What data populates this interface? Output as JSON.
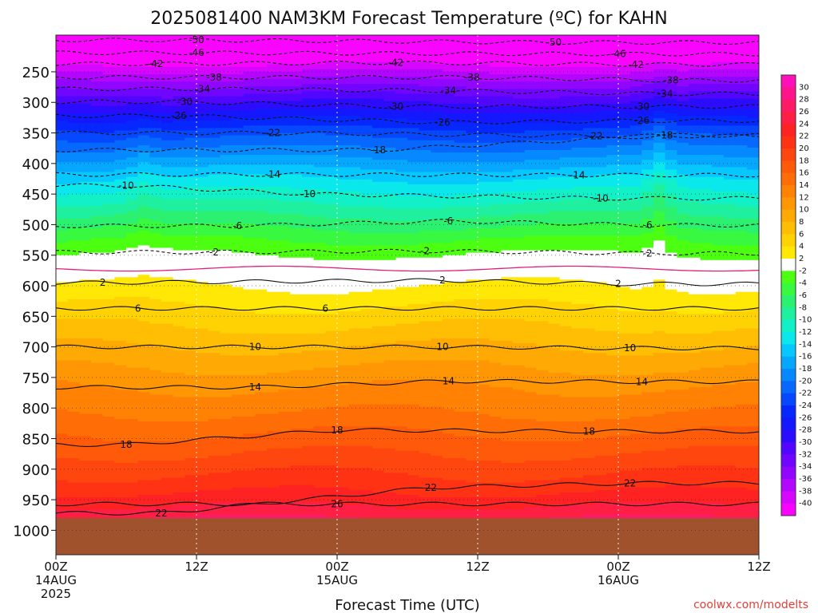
{
  "chart_data": {
    "type": "heatmap",
    "title": "2025081400 NAM3KM Forecast Temperature (ºC) for KAHN",
    "xlabel": "Forecast Time (UTC)",
    "ylabel": "",
    "x_range": [
      "2025-08-14 00Z",
      "2025-08-16 12Z"
    ],
    "x_ticks": [
      {
        "hour": 0,
        "label": "00Z",
        "sub": "14AUG",
        "sub2": "2025"
      },
      {
        "hour": 12,
        "label": "12Z",
        "sub": "",
        "sub2": ""
      },
      {
        "hour": 24,
        "label": "00Z",
        "sub": "15AUG",
        "sub2": ""
      },
      {
        "hour": 36,
        "label": "12Z",
        "sub": "",
        "sub2": ""
      },
      {
        "hour": 48,
        "label": "00Z",
        "sub": "16AUG",
        "sub2": ""
      },
      {
        "hour": 60,
        "label": "12Z",
        "sub": "",
        "sub2": ""
      }
    ],
    "y_axis": {
      "quantity": "pressure (hPa)",
      "direction": "decreasing upward",
      "range": [
        1040,
        190
      ],
      "ticks": [
        250,
        300,
        350,
        400,
        450,
        500,
        550,
        600,
        650,
        700,
        750,
        800,
        850,
        900,
        950,
        1000
      ]
    },
    "grid": true,
    "surface_band_hPa": [
      980,
      1040
    ],
    "colorbar": {
      "placement": "right",
      "labels": [
        "30",
        "28",
        "26",
        "24",
        "22",
        "20",
        "18",
        "16",
        "14",
        "12",
        "10",
        "8",
        "6",
        "4",
        "2",
        "-2",
        "-4",
        "-6",
        "-8",
        "-10",
        "-12",
        "-14",
        "-16",
        "-18",
        "-20",
        "-22",
        "-24",
        "-26",
        "-28",
        "-30",
        "-32",
        "-34",
        "-36",
        "-38",
        "-40"
      ],
      "colors": [
        "#ff10b8",
        "#ff148c",
        "#ff1a66",
        "#ff1e44",
        "#ff2222",
        "#ff3214",
        "#ff460e",
        "#ff5a0a",
        "#ff6e06",
        "#ff8204",
        "#ff9604",
        "#ffaa04",
        "#ffbe04",
        "#ffd204",
        "#ffe806",
        "#ffffff",
        "#4cff10",
        "#38f840",
        "#2cf070",
        "#1ef0a0",
        "#12f0c8",
        "#0ae8ec",
        "#06c8ff",
        "#06a8ff",
        "#0688ff",
        "#0668ff",
        "#0648ff",
        "#0628ff",
        "#1418ff",
        "#2c0cff",
        "#5006ff",
        "#7006ff",
        "#9006ff",
        "#b206ff",
        "#d606ff",
        "#f804ff"
      ]
    },
    "levels_hPa": [
      1000,
      975,
      950,
      925,
      900,
      875,
      850,
      825,
      800,
      775,
      750,
      725,
      700,
      675,
      650,
      625,
      600,
      575,
      550,
      525,
      500,
      475,
      450,
      425,
      400,
      375,
      350,
      325,
      300,
      275,
      250,
      225,
      200
    ],
    "mean_profile_C": [
      28.5,
      25.5,
      23,
      21,
      19.5,
      18,
      16.5,
      15,
      13.5,
      12.5,
      11,
      9.5,
      8,
      6.5,
      5,
      3.5,
      2,
      0.5,
      -2,
      -4,
      -6.5,
      -9,
      -11.5,
      -14,
      -17,
      -20,
      -23,
      -26.5,
      -30,
      -34,
      -38,
      -42.5,
      -47
    ],
    "contour_labels": [
      {
        "value": "-50",
        "hour": 12.0,
        "p": 198
      },
      {
        "value": "-50",
        "hour": 42.5,
        "p": 202
      },
      {
        "value": "-46",
        "hour": 12.0,
        "p": 219
      },
      {
        "value": "-46",
        "hour": 48.0,
        "p": 221
      },
      {
        "value": "-42",
        "hour": 8.5,
        "p": 237
      },
      {
        "value": "-42",
        "hour": 29.0,
        "p": 235
      },
      {
        "value": "-42",
        "hour": 49.5,
        "p": 238
      },
      {
        "value": "-38",
        "hour": 13.5,
        "p": 259
      },
      {
        "value": "-38",
        "hour": 35.5,
        "p": 259
      },
      {
        "value": "-38",
        "hour": 52.5,
        "p": 264
      },
      {
        "value": "-34",
        "hour": 12.5,
        "p": 278
      },
      {
        "value": "-34",
        "hour": 33.5,
        "p": 281
      },
      {
        "value": "-34",
        "hour": 52.0,
        "p": 286
      },
      {
        "value": "-30",
        "hour": 11.0,
        "p": 299
      },
      {
        "value": "-30",
        "hour": 29.0,
        "p": 307
      },
      {
        "value": "-30",
        "hour": 50.0,
        "p": 307
      },
      {
        "value": "-26",
        "hour": 10.5,
        "p": 322
      },
      {
        "value": "-26",
        "hour": 33.0,
        "p": 333
      },
      {
        "value": "-26",
        "hour": 50.0,
        "p": 330
      },
      {
        "value": "-22",
        "hour": 18.5,
        "p": 350
      },
      {
        "value": "-22",
        "hour": 46.0,
        "p": 355
      },
      {
        "value": "-18",
        "hour": 27.5,
        "p": 378
      },
      {
        "value": "-18",
        "hour": 52.0,
        "p": 354
      },
      {
        "value": "-14",
        "hour": 18.5,
        "p": 418
      },
      {
        "value": "-14",
        "hour": 44.5,
        "p": 419
      },
      {
        "value": "-10",
        "hour": 6.0,
        "p": 436
      },
      {
        "value": "-10",
        "hour": 21.5,
        "p": 450
      },
      {
        "value": "-10",
        "hour": 46.5,
        "p": 457
      },
      {
        "value": "-6",
        "hour": 15.5,
        "p": 502
      },
      {
        "value": "-6",
        "hour": 33.5,
        "p": 494
      },
      {
        "value": "-6",
        "hour": 50.5,
        "p": 501
      },
      {
        "value": "-2",
        "hour": 13.5,
        "p": 545
      },
      {
        "value": "-2",
        "hour": 31.5,
        "p": 543
      },
      {
        "value": "-2",
        "hour": 50.5,
        "p": 547
      },
      {
        "value": "2",
        "hour": 4.0,
        "p": 595
      },
      {
        "value": "2",
        "hour": 33.0,
        "p": 591
      },
      {
        "value": "2",
        "hour": 48.0,
        "p": 597
      },
      {
        "value": "6",
        "hour": 7.0,
        "p": 637
      },
      {
        "value": "6",
        "hour": 23.0,
        "p": 637
      },
      {
        "value": "10",
        "hour": 17.0,
        "p": 700
      },
      {
        "value": "10",
        "hour": 33.0,
        "p": 700
      },
      {
        "value": "10",
        "hour": 49.0,
        "p": 702
      },
      {
        "value": "14",
        "hour": 17.0,
        "p": 766
      },
      {
        "value": "14",
        "hour": 33.5,
        "p": 756
      },
      {
        "value": "14",
        "hour": 50.0,
        "p": 757
      },
      {
        "value": "18",
        "hour": 6.0,
        "p": 860
      },
      {
        "value": "18",
        "hour": 24.0,
        "p": 836
      },
      {
        "value": "18",
        "hour": 45.5,
        "p": 838
      },
      {
        "value": "22",
        "hour": 32.0,
        "p": 930
      },
      {
        "value": "22",
        "hour": 49.0,
        "p": 923
      },
      {
        "value": "22",
        "hour": 9.0,
        "p": 972
      },
      {
        "value": "26",
        "hour": 24.0,
        "p": 957
      }
    ]
  },
  "credit": "coolwx.com/modelts"
}
